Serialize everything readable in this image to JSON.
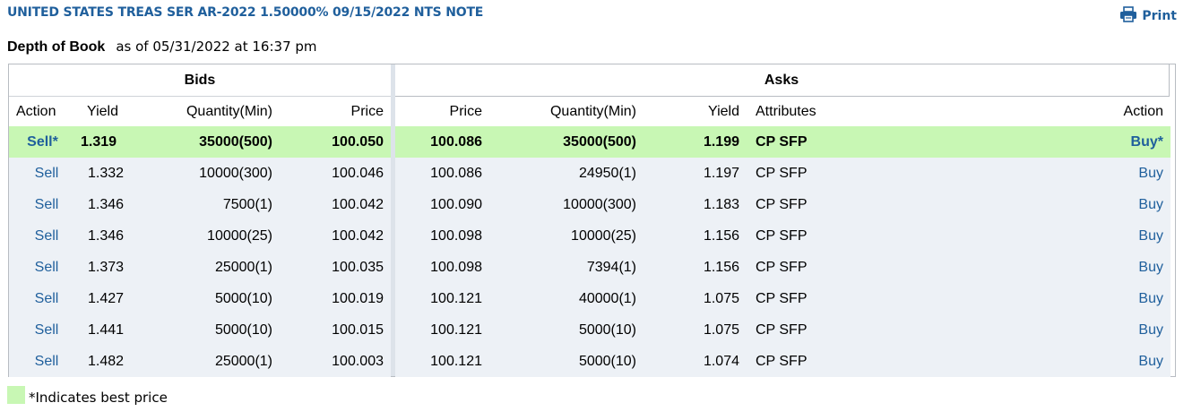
{
  "title": "UNITED STATES TREAS SER AR-2022 1.50000% 09/15/2022 NTS NOTE",
  "print_label": "Print",
  "print_icon": "printer-icon",
  "depth_label": "Depth of Book",
  "as_of": "as of 05/31/2022 at 16:37  pm",
  "groups": {
    "bids": "Bids",
    "asks": "Asks"
  },
  "columns": {
    "bid_action": "Action",
    "bid_yield": "Yield",
    "bid_qty": "Quantity(Min)",
    "bid_price": "Price",
    "ask_price": "Price",
    "ask_qty": "Quantity(Min)",
    "ask_yield": "Yield",
    "ask_attributes": "Attributes",
    "ask_action": "Action"
  },
  "rows": [
    {
      "bid_action": "Sell*",
      "bid_yield": "1.319",
      "bid_qty": "35000(500)",
      "bid_price": "100.050",
      "ask_price": "100.086",
      "ask_qty": "35000(500)",
      "ask_yield": "1.199",
      "ask_attributes": "CP SFP",
      "ask_action": "Buy*",
      "best": true
    },
    {
      "bid_action": "Sell",
      "bid_yield": "1.332",
      "bid_qty": "10000(300)",
      "bid_price": "100.046",
      "ask_price": "100.086",
      "ask_qty": "24950(1)",
      "ask_yield": "1.197",
      "ask_attributes": "CP SFP",
      "ask_action": "Buy"
    },
    {
      "bid_action": "Sell",
      "bid_yield": "1.346",
      "bid_qty": "7500(1)",
      "bid_price": "100.042",
      "ask_price": "100.090",
      "ask_qty": "10000(300)",
      "ask_yield": "1.183",
      "ask_attributes": "CP SFP",
      "ask_action": "Buy"
    },
    {
      "bid_action": "Sell",
      "bid_yield": "1.346",
      "bid_qty": "10000(25)",
      "bid_price": "100.042",
      "ask_price": "100.098",
      "ask_qty": "10000(25)",
      "ask_yield": "1.156",
      "ask_attributes": "CP SFP",
      "ask_action": "Buy"
    },
    {
      "bid_action": "Sell",
      "bid_yield": "1.373",
      "bid_qty": "25000(1)",
      "bid_price": "100.035",
      "ask_price": "100.098",
      "ask_qty": "7394(1)",
      "ask_yield": "1.156",
      "ask_attributes": "CP SFP",
      "ask_action": "Buy"
    },
    {
      "bid_action": "Sell",
      "bid_yield": "1.427",
      "bid_qty": "5000(10)",
      "bid_price": "100.019",
      "ask_price": "100.121",
      "ask_qty": "40000(1)",
      "ask_yield": "1.075",
      "ask_attributes": "CP SFP",
      "ask_action": "Buy"
    },
    {
      "bid_action": "Sell",
      "bid_yield": "1.441",
      "bid_qty": "5000(10)",
      "bid_price": "100.015",
      "ask_price": "100.121",
      "ask_qty": "5000(10)",
      "ask_yield": "1.075",
      "ask_attributes": "CP SFP",
      "ask_action": "Buy"
    },
    {
      "bid_action": "Sell",
      "bid_yield": "1.482",
      "bid_qty": "25000(1)",
      "bid_price": "100.003",
      "ask_price": "100.121",
      "ask_qty": "5000(10)",
      "ask_yield": "1.074",
      "ask_attributes": "CP SFP",
      "ask_action": "Buy"
    }
  ],
  "legend_text": "*Indicates best price",
  "colors": {
    "link": "#1f5f9c",
    "best_row": "#c8f7b4",
    "row_bg": "#edf1f6"
  }
}
